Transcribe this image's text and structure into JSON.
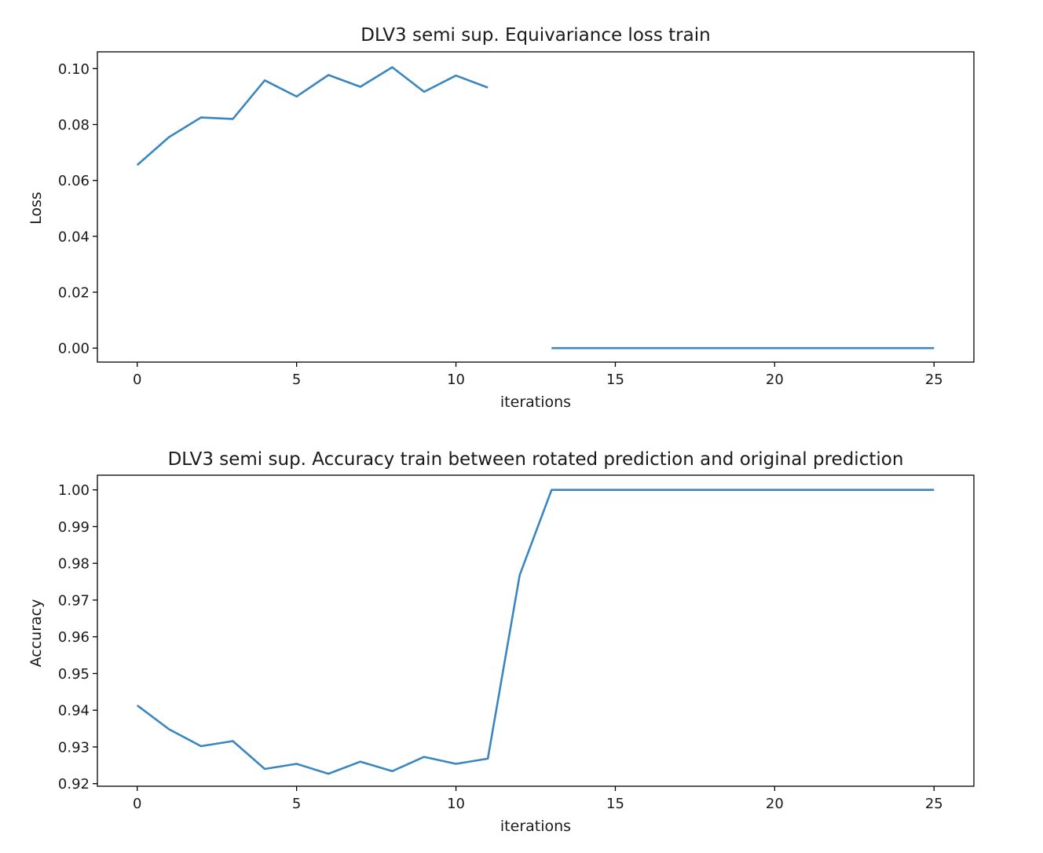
{
  "colors": {
    "series": "#3a87c0"
  },
  "chart_data": [
    {
      "type": "line",
      "title": "DLV3 semi sup. Equivariance loss train",
      "xlabel": "iterations",
      "ylabel": "Loss",
      "xlim": [
        -1.25,
        26.25
      ],
      "ylim": [
        -0.005,
        0.106
      ],
      "xticks": [
        0,
        5,
        10,
        15,
        20,
        25
      ],
      "xtick_labels": [
        "0",
        "5",
        "10",
        "15",
        "20",
        "25"
      ],
      "yticks": [
        0,
        0.02,
        0.04,
        0.06,
        0.08,
        0.1
      ],
      "ytick_labels": [
        "0.00",
        "0.02",
        "0.04",
        "0.06",
        "0.08",
        "0.10"
      ],
      "grid": false,
      "series": [
        {
          "segments": [
            {
              "x": [
                0,
                1,
                2,
                3,
                4,
                5,
                6,
                7,
                8,
                9,
                10,
                11
              ],
              "y": [
                0.0655,
                0.0755,
                0.0825,
                0.082,
                0.0958,
                0.09,
                0.0977,
                0.0935,
                0.1005,
                0.0917,
                0.0975,
                0.0932
              ]
            },
            {
              "x": [
                13,
                14,
                15,
                16,
                17,
                18,
                19,
                20,
                21,
                22,
                23,
                24,
                25
              ],
              "y": [
                0,
                0,
                0,
                0,
                0,
                0,
                0,
                0,
                0,
                0,
                0,
                0,
                0
              ]
            }
          ]
        }
      ]
    },
    {
      "type": "line",
      "title": "DLV3 semi sup. Accuracy train between rotated prediction and original prediction",
      "xlabel": "iterations",
      "ylabel": "Accuracy",
      "xlim": [
        -1.25,
        26.25
      ],
      "ylim": [
        0.9193,
        1.004
      ],
      "xticks": [
        0,
        5,
        10,
        15,
        20,
        25
      ],
      "xtick_labels": [
        "0",
        "5",
        "10",
        "15",
        "20",
        "25"
      ],
      "yticks": [
        0.92,
        0.93,
        0.94,
        0.95,
        0.96,
        0.97,
        0.98,
        0.99,
        1.0
      ],
      "ytick_labels": [
        "0.92",
        "0.93",
        "0.94",
        "0.95",
        "0.96",
        "0.97",
        "0.98",
        "0.99",
        "1.00"
      ],
      "grid": false,
      "series": [
        {
          "segments": [
            {
              "x": [
                0,
                1,
                2,
                3,
                4,
                5,
                6,
                7,
                8,
                9,
                10,
                11,
                12,
                13,
                14,
                15,
                16,
                17,
                18,
                19,
                20,
                21,
                22,
                23,
                24,
                25
              ],
              "y": [
                0.9413,
                0.9348,
                0.9302,
                0.9316,
                0.924,
                0.9254,
                0.9227,
                0.926,
                0.9234,
                0.9273,
                0.9254,
                0.9268,
                0.9768,
                1.0,
                1.0,
                1.0,
                1.0,
                1.0,
                1.0,
                1.0,
                1.0,
                1.0,
                1.0,
                1.0,
                1.0,
                1.0
              ]
            }
          ]
        }
      ]
    }
  ]
}
